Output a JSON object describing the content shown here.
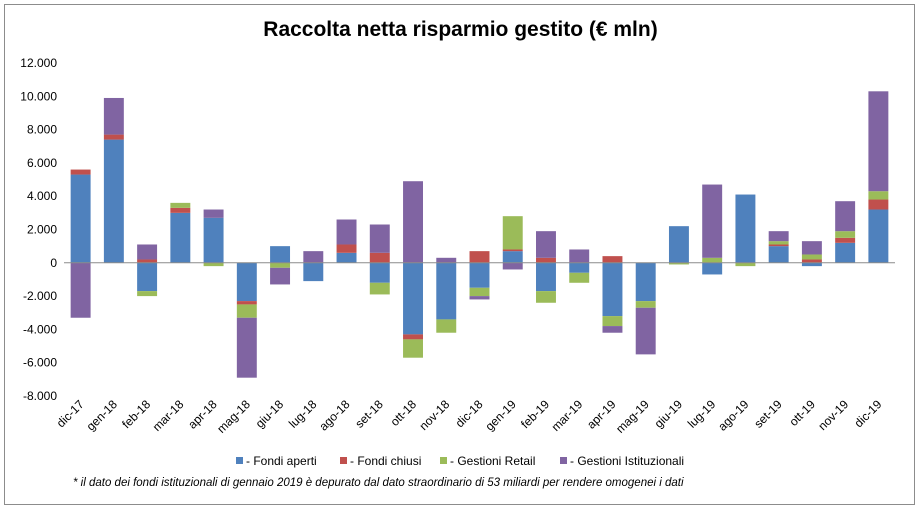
{
  "chart_data": {
    "type": "bar",
    "stacked": true,
    "title": "Raccolta netta risparmio gestito (€ mln)",
    "footnote": "* il dato dei fondi istituzionali di gennaio 2019 è depurato dal dato straordinario di 53 miliardi per rendere omogenei i dati",
    "categories": [
      "dic-17",
      "gen-18",
      "feb-18",
      "mar-18",
      "apr-18",
      "mag-18",
      "giu-18",
      "lug-18",
      "ago-18",
      "set-18",
      "ott-18",
      "nov-18",
      "dic-18",
      "gen-19",
      "feb-19",
      "mar-19",
      "apr-19",
      "mag-19",
      "giu-19",
      "lug-19",
      "ago-19",
      "set-19",
      "ott-19",
      "nov-19",
      "dic-19"
    ],
    "ylim": [
      -8000,
      12000
    ],
    "yticks": [
      -8000,
      -6000,
      -4000,
      -2000,
      0,
      2000,
      4000,
      6000,
      8000,
      10000,
      12000
    ],
    "ytick_labels": [
      "-8.000",
      "-6.000",
      "-4.000",
      "-2.000",
      "0",
      "2.000",
      "4.000",
      "6.000",
      "8.000",
      "10.000",
      "12.000"
    ],
    "legend_position": "bottom",
    "series": [
      {
        "name": "- Fondi aperti",
        "color": "#4f81bd",
        "values": [
          5300,
          7400,
          -1700,
          3000,
          2700,
          -2300,
          1000,
          -1100,
          600,
          -1200,
          -4300,
          -3400,
          -1500,
          700,
          -1700,
          -600,
          -3200,
          -2300,
          2200,
          -700,
          4100,
          1000,
          -200,
          1200,
          3200
        ]
      },
      {
        "name": "- Fondi chiusi",
        "color": "#c0504d",
        "values": [
          300,
          300,
          200,
          300,
          0,
          -200,
          0,
          0,
          500,
          600,
          -300,
          0,
          700,
          100,
          300,
          0,
          400,
          0,
          0,
          0,
          0,
          100,
          200,
          300,
          600
        ]
      },
      {
        "name": "- Gestioni Retail",
        "color": "#9bbb59",
        "values": [
          0,
          0,
          -300,
          300,
          -200,
          -800,
          -300,
          0,
          0,
          -700,
          -1100,
          -800,
          -500,
          2000,
          -700,
          -600,
          -600,
          -400,
          -100,
          300,
          -200,
          200,
          300,
          400,
          500
        ]
      },
      {
        "name": "- Gestioni Istituzionali",
        "color": "#8064a2",
        "values": [
          -3300,
          2200,
          900,
          0,
          500,
          -3600,
          -1000,
          700,
          1500,
          1700,
          4900,
          300,
          -200,
          -400,
          1600,
          800,
          -400,
          -2800,
          0,
          4400,
          0,
          600,
          800,
          1800,
          6000
        ]
      }
    ]
  }
}
